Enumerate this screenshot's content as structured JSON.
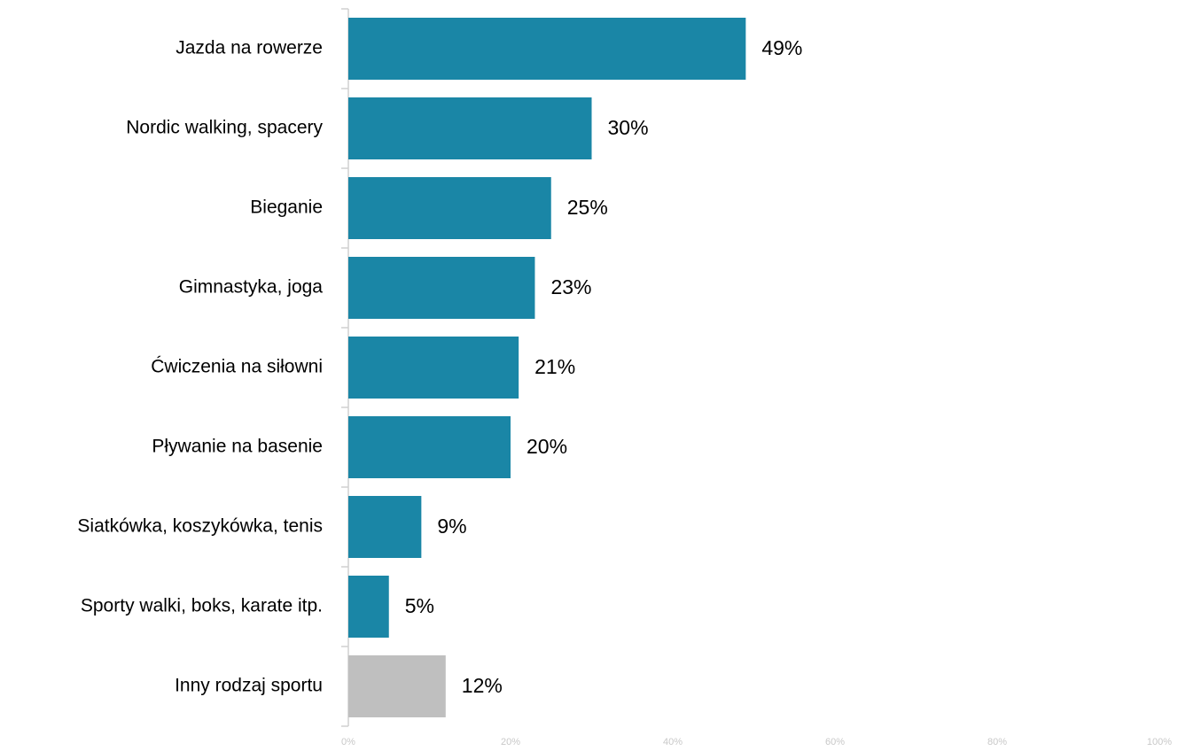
{
  "chart_data": {
    "type": "barh",
    "categories": [
      "Jazda na rowerze",
      "Nordic walking, spacery",
      "Bieganie",
      "Gimnastyka, joga",
      "Ćwiczenia na siłowni",
      "Pływanie na basenie",
      "Siatkówka, koszykówka, tenis",
      "Sporty walki, boks, karate itp.",
      "Inny rodzaj sportu"
    ],
    "values": [
      49,
      30,
      25,
      23,
      21,
      20,
      9,
      5,
      12
    ],
    "value_labels": [
      "49%",
      "30%",
      "25%",
      "23%",
      "21%",
      "20%",
      "9%",
      "5%",
      "12%"
    ],
    "colors": [
      "#1a86a6",
      "#1a86a6",
      "#1a86a6",
      "#1a86a6",
      "#1a86a6",
      "#1a86a6",
      "#1a86a6",
      "#1a86a6",
      "#bfbfbf"
    ],
    "xlim": [
      0,
      100
    ],
    "xticks": [
      {
        "value": 0,
        "label": "0%"
      },
      {
        "value": 20,
        "label": "20%"
      },
      {
        "value": 40,
        "label": "40%"
      },
      {
        "value": 60,
        "label": "60%"
      },
      {
        "value": 80,
        "label": "80%"
      },
      {
        "value": 100,
        "label": "100%"
      }
    ]
  }
}
